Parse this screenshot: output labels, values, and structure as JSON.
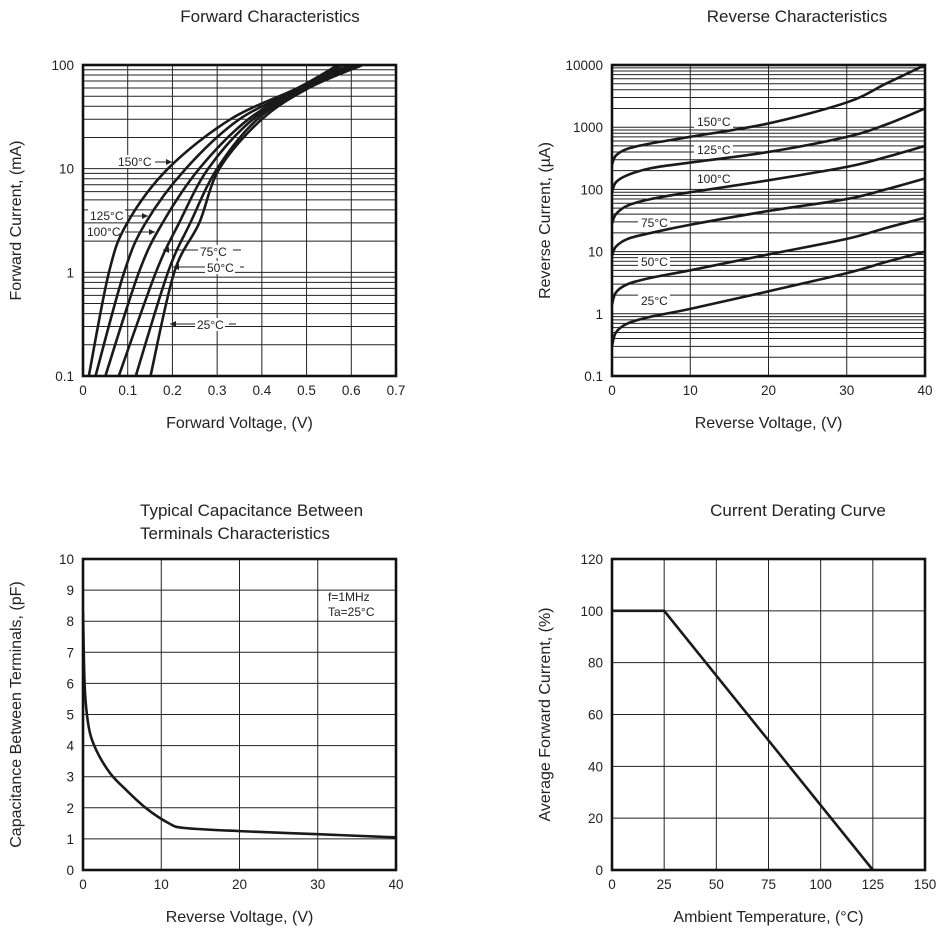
{
  "chart_data": [
    {
      "type": "line",
      "title": "Forward Characteristics",
      "xlabel": "Forward Voltage, (V)",
      "ylabel": "Forward Current, (mA)",
      "xlim": [
        0,
        0.7
      ],
      "ylim": [
        0.1,
        100
      ],
      "yscale": "log",
      "grid": true,
      "x_ticks": [
        "0",
        "0.1",
        "0.2",
        "0.3",
        "0.4",
        "0.5",
        "0.6",
        "0.7"
      ],
      "y_ticks": [
        "0.1",
        "1",
        "10",
        "100"
      ],
      "series": [
        {
          "name": "150°C",
          "x": [
            0.013,
            0.058,
            0.099,
            0.19,
            0.33,
            0.48,
            0.57
          ],
          "y": [
            0.1,
            1,
            3,
            10,
            30,
            60,
            100
          ]
        },
        {
          "name": "125°C",
          "x": [
            0.028,
            0.092,
            0.14,
            0.23,
            0.35,
            0.49,
            0.58
          ],
          "y": [
            0.1,
            1,
            3,
            10,
            30,
            60,
            100
          ]
        },
        {
          "name": "100°C",
          "x": [
            0.05,
            0.125,
            0.178,
            0.26,
            0.37,
            0.49,
            0.595
          ],
          "y": [
            0.1,
            1,
            3,
            10,
            30,
            60,
            100
          ]
        },
        {
          "name": "75°C",
          "x": [
            0.08,
            0.163,
            0.215,
            0.28,
            0.38,
            0.495,
            0.607
          ],
          "y": [
            0.1,
            1,
            3,
            10,
            30,
            60,
            100
          ]
        },
        {
          "name": "50°C",
          "x": [
            0.118,
            0.19,
            0.24,
            0.3,
            0.39,
            0.5,
            0.618
          ],
          "y": [
            0.1,
            1,
            3,
            10,
            30,
            60,
            100
          ]
        },
        {
          "name": "25°C",
          "x": [
            0.151,
            0.204,
            0.26,
            0.305,
            0.4,
            0.505,
            0.625
          ],
          "y": [
            0.1,
            1,
            3,
            10,
            30,
            60,
            100
          ]
        }
      ]
    },
    {
      "type": "line",
      "title": "Reverse Characteristics",
      "xlabel": "Reverse Voltage, (V)",
      "ylabel": "Reverse Current, (µA)",
      "xlim": [
        0,
        40
      ],
      "ylim": [
        0.1,
        10000
      ],
      "yscale": "log",
      "grid": true,
      "x_ticks": [
        "0",
        "10",
        "20",
        "30",
        "40"
      ],
      "y_ticks": [
        "0.1",
        "1",
        "10",
        "100",
        "1000",
        "10000"
      ],
      "series": [
        {
          "name": "150°C",
          "x": [
            0,
            0.5,
            2,
            5,
            10,
            20,
            30,
            35,
            40
          ],
          "y": [
            250,
            350,
            450,
            550,
            700,
            1150,
            2500,
            5000,
            10000
          ]
        },
        {
          "name": "125°C",
          "x": [
            0,
            0.5,
            2,
            5,
            10,
            20,
            30,
            35,
            40
          ],
          "y": [
            90,
            130,
            170,
            220,
            270,
            400,
            700,
            1100,
            2000
          ]
        },
        {
          "name": "100°C",
          "x": [
            0,
            0.5,
            2,
            5,
            10,
            20,
            30,
            35,
            40
          ],
          "y": [
            28,
            40,
            55,
            70,
            90,
            140,
            230,
            330,
            500
          ]
        },
        {
          "name": "75°C",
          "x": [
            0,
            0.5,
            2,
            5,
            10,
            20,
            30,
            35,
            40
          ],
          "y": [
            8.5,
            12,
            16,
            20,
            27,
            45,
            70,
            100,
            150
          ]
        },
        {
          "name": "50°C",
          "x": [
            0,
            0.5,
            2,
            5,
            10,
            20,
            30,
            35,
            40
          ],
          "y": [
            1.4,
            2.2,
            3,
            3.8,
            5,
            9,
            16,
            24,
            35
          ]
        },
        {
          "name": "25°C",
          "x": [
            0,
            0.5,
            2,
            5,
            10,
            20,
            30,
            35,
            40
          ],
          "y": [
            0.3,
            0.5,
            0.7,
            0.9,
            1.2,
            2.3,
            4.5,
            6.8,
            10
          ]
        }
      ]
    },
    {
      "type": "line",
      "title": [
        "Typical Capacitance Between",
        "Terminals Characteristics"
      ],
      "xlabel": "Reverse Voltage, (V)",
      "ylabel": "Capacitance Between Terminals, (pF)",
      "xlim": [
        0,
        40
      ],
      "ylim": [
        0,
        10
      ],
      "grid": true,
      "x_ticks": [
        "0",
        "10",
        "20",
        "30",
        "40"
      ],
      "y_ticks": [
        "0",
        "1",
        "2",
        "3",
        "4",
        "5",
        "6",
        "7",
        "8",
        "9",
        "10"
      ],
      "annotations": [
        "f=1MHz",
        "Ta=25°C"
      ],
      "series": [
        {
          "name": "Capacitance",
          "x": [
            0,
            0.2,
            0.5,
            1,
            2,
            3.5,
            5,
            8,
            11,
            13,
            20,
            30,
            40
          ],
          "y": [
            8.3,
            6,
            5,
            4.3,
            3.7,
            3.1,
            2.7,
            2.0,
            1.5,
            1.35,
            1.25,
            1.15,
            1.05
          ]
        }
      ]
    },
    {
      "type": "line",
      "title": "Current Derating Curve",
      "xlabel": "Ambient Temperature, (°C)",
      "ylabel": "Average Forward Current, (%)",
      "xlim": [
        0,
        150
      ],
      "ylim": [
        0,
        120
      ],
      "grid": true,
      "x_ticks": [
        "0",
        "25",
        "50",
        "75",
        "100",
        "125",
        "150"
      ],
      "y_ticks": [
        "0",
        "20",
        "40",
        "60",
        "80",
        "100",
        "120"
      ],
      "series": [
        {
          "name": "Derating",
          "x": [
            0,
            25,
            125
          ],
          "y": [
            100,
            100,
            0
          ]
        }
      ]
    }
  ]
}
